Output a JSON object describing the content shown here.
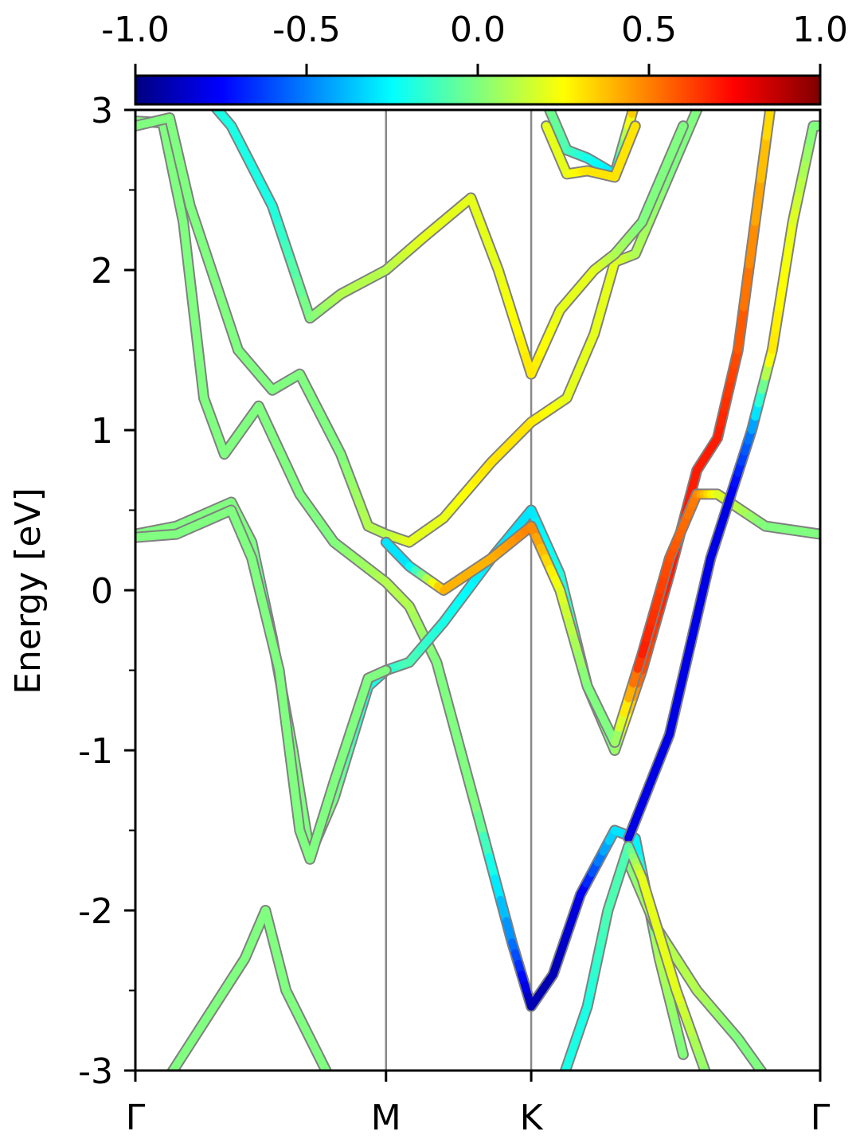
{
  "chart_data": {
    "type": "line",
    "ylabel": "Energy [eV]",
    "ylim": [
      -3,
      3
    ],
    "y_ticks": [
      "3",
      "2",
      "1",
      "0",
      "-1",
      "-2",
      "-3"
    ],
    "y_tick_values": [
      3,
      2,
      1,
      0,
      -1,
      -2,
      -3
    ],
    "k_points": [
      {
        "label": "Γ",
        "x": 0.0
      },
      {
        "label": "M",
        "x": 0.366
      },
      {
        "label": "K",
        "x": 0.578
      },
      {
        "label": "Γ",
        "x": 1.0
      }
    ],
    "colorbar": {
      "colormap": "jet",
      "range": [
        -1.0,
        1.0
      ],
      "tick_labels": [
        "-1.0",
        "-0.5",
        "0.0",
        "0.5",
        "1.0"
      ],
      "tick_values": [
        -1.0,
        -0.5,
        0.0,
        0.5,
        1.0
      ]
    },
    "series": [
      {
        "points": [
          [
            0.0,
            2.93
          ],
          [
            0.04,
            2.92
          ],
          [
            0.07,
            2.3
          ],
          [
            0.1,
            1.2
          ],
          [
            0.13,
            0.85
          ],
          [
            0.18,
            1.15
          ],
          [
            0.24,
            0.6
          ],
          [
            0.29,
            0.3
          ],
          [
            0.366,
            0.05
          ],
          [
            0.4,
            -0.1
          ],
          [
            0.44,
            -0.45
          ],
          [
            0.5,
            -1.4
          ],
          [
            0.55,
            -2.2
          ],
          [
            0.578,
            -2.6
          ],
          [
            0.61,
            -2.4
          ],
          [
            0.65,
            -1.9
          ],
          [
            0.7,
            -1.5
          ],
          [
            0.73,
            -1.55
          ],
          [
            0.765,
            -2.3
          ],
          [
            0.8,
            -2.9
          ]
        ],
        "color_values": [
          0,
          0,
          0,
          0,
          0,
          0,
          0,
          0,
          0.1,
          0.1,
          0,
          0,
          -0.5,
          -0.9,
          -0.9,
          -0.8,
          -0.3,
          -0.3,
          0.1,
          0
        ]
      },
      {
        "points": [
          [
            0.0,
            2.9
          ],
          [
            0.05,
            2.95
          ],
          [
            0.08,
            2.4
          ],
          [
            0.15,
            1.5
          ],
          [
            0.2,
            1.25
          ],
          [
            0.24,
            1.35
          ],
          [
            0.3,
            0.85
          ],
          [
            0.34,
            0.4
          ],
          [
            0.366,
            0.35
          ],
          [
            0.4,
            0.3
          ],
          [
            0.45,
            0.45
          ],
          [
            0.52,
            0.8
          ],
          [
            0.578,
            1.05
          ],
          [
            0.63,
            1.2
          ],
          [
            0.67,
            1.6
          ],
          [
            0.7,
            2.05
          ],
          [
            0.73,
            2.1
          ],
          [
            0.78,
            2.6
          ],
          [
            0.83,
            3.1
          ]
        ],
        "color_values": [
          0,
          0,
          0,
          0,
          0,
          0,
          0,
          0.1,
          0.1,
          0.2,
          0.2,
          0.3,
          0.3,
          0.2,
          0.2,
          0.2,
          0.1,
          0,
          0
        ]
      },
      {
        "points": [
          [
            0.1,
            3.1
          ],
          [
            0.14,
            2.9
          ],
          [
            0.2,
            2.4
          ],
          [
            0.255,
            1.7
          ],
          [
            0.3,
            1.85
          ],
          [
            0.366,
            2.0
          ],
          [
            0.42,
            2.2
          ],
          [
            0.49,
            2.45
          ],
          [
            0.53,
            2.0
          ],
          [
            0.578,
            1.35
          ],
          [
            0.62,
            1.75
          ],
          [
            0.67,
            2.0
          ],
          [
            0.7,
            2.1
          ],
          [
            0.74,
            2.3
          ],
          [
            0.8,
            2.9
          ]
        ],
        "color_values": [
          -0.2,
          -0.2,
          -0.2,
          0,
          0.1,
          0.1,
          0.2,
          0.2,
          0.2,
          0.3,
          0.2,
          0.2,
          0.1,
          0,
          0
        ]
      },
      {
        "points": [
          [
            0.0,
            0.35
          ],
          [
            0.06,
            0.4
          ],
          [
            0.14,
            0.55
          ],
          [
            0.17,
            0.3
          ],
          [
            0.2,
            -0.3
          ],
          [
            0.23,
            -1.0
          ],
          [
            0.255,
            -1.65
          ],
          [
            0.29,
            -1.3
          ],
          [
            0.34,
            -0.6
          ],
          [
            0.366,
            -0.5
          ],
          [
            0.4,
            -0.45
          ],
          [
            0.45,
            -0.2
          ],
          [
            0.52,
            0.2
          ],
          [
            0.578,
            0.5
          ],
          [
            0.62,
            0.1
          ],
          [
            0.66,
            -0.6
          ],
          [
            0.7,
            -1.0
          ],
          [
            0.74,
            -0.5
          ],
          [
            0.78,
            0.1
          ],
          [
            0.82,
            0.75
          ],
          [
            0.85,
            0.95
          ],
          [
            0.88,
            1.5
          ],
          [
            0.93,
            3.1
          ]
        ],
        "color_values": [
          0,
          0,
          0,
          0,
          -0.1,
          0,
          0,
          0,
          -0.2,
          -0.2,
          -0.1,
          -0.2,
          -0.3,
          -0.3,
          -0.2,
          0,
          0,
          0.6,
          0.7,
          0.7,
          0.7,
          0.6,
          0.3
        ]
      },
      {
        "points": [
          [
            0.366,
            0.3
          ],
          [
            0.4,
            0.15
          ],
          [
            0.45,
            0.0
          ],
          [
            0.52,
            0.2
          ],
          [
            0.578,
            0.4
          ],
          [
            0.62,
            0.0
          ],
          [
            0.66,
            -0.6
          ],
          [
            0.7,
            -0.95
          ],
          [
            0.74,
            -0.4
          ],
          [
            0.78,
            0.2
          ],
          [
            0.82,
            0.6
          ],
          [
            0.85,
            0.6
          ],
          [
            0.92,
            0.4
          ],
          [
            1.0,
            0.35
          ]
        ],
        "color_values": [
          -0.3,
          -0.3,
          0.4,
          0.4,
          0.5,
          0.2,
          0,
          0,
          0.7,
          0.6,
          0.5,
          0.2,
          0,
          0
        ]
      },
      {
        "points": [
          [
            0.72,
            -1.55
          ],
          [
            0.78,
            -0.9
          ],
          [
            0.84,
            0.2
          ],
          [
            0.87,
            0.6
          ],
          [
            0.9,
            1.0
          ],
          [
            0.93,
            1.5
          ],
          [
            0.96,
            2.3
          ],
          [
            0.99,
            2.9
          ],
          [
            1.0,
            2.9
          ]
        ],
        "color_values": [
          -0.8,
          -0.8,
          -0.8,
          -0.8,
          -0.5,
          0.3,
          0.2,
          0,
          0
        ]
      },
      {
        "points": [
          [
            0.6,
            3.05
          ],
          [
            0.63,
            2.75
          ],
          [
            0.66,
            2.7
          ],
          [
            0.7,
            2.6
          ],
          [
            0.73,
            3.05
          ]
        ],
        "color_values": [
          0,
          -0.1,
          -0.2,
          -0.3,
          0.4
        ]
      },
      {
        "points": [
          [
            0.6,
            2.9
          ],
          [
            0.63,
            2.6
          ],
          [
            0.66,
            2.62
          ],
          [
            0.7,
            2.58
          ],
          [
            0.73,
            2.9
          ]
        ],
        "color_values": [
          0.2,
          0.2,
          0.3,
          0.3,
          0.3
        ]
      },
      {
        "points": [
          [
            0.0,
            0.33
          ],
          [
            0.06,
            0.35
          ],
          [
            0.14,
            0.5
          ],
          [
            0.17,
            0.2
          ],
          [
            0.21,
            -0.5
          ],
          [
            0.24,
            -1.5
          ],
          [
            0.255,
            -1.68
          ],
          [
            0.29,
            -1.2
          ],
          [
            0.34,
            -0.55
          ],
          [
            0.366,
            -0.5
          ]
        ],
        "color_values": [
          0,
          0,
          0,
          0,
          0,
          0,
          0,
          0,
          0,
          0
        ]
      },
      {
        "points": [
          [
            0.04,
            -3.1
          ],
          [
            0.1,
            -2.7
          ],
          [
            0.16,
            -2.3
          ],
          [
            0.19,
            -2.0
          ],
          [
            0.22,
            -2.5
          ],
          [
            0.29,
            -3.1
          ]
        ],
        "color_values": [
          0,
          0,
          0,
          0,
          0,
          0
        ]
      },
      {
        "points": [
          [
            0.72,
            -1.7
          ],
          [
            0.76,
            -2.1
          ],
          [
            0.82,
            -2.5
          ],
          [
            0.88,
            -2.8
          ],
          [
            0.93,
            -3.1
          ]
        ],
        "color_values": [
          0,
          0.1,
          0.1,
          0,
          0
        ]
      },
      {
        "points": [
          [
            0.62,
            -3.1
          ],
          [
            0.66,
            -2.6
          ],
          [
            0.69,
            -2.0
          ],
          [
            0.72,
            -1.6
          ],
          [
            0.74,
            -1.8
          ],
          [
            0.79,
            -2.5
          ],
          [
            0.84,
            -3.1
          ]
        ],
        "color_values": [
          -0.2,
          -0.2,
          -0.1,
          -0.1,
          0.2,
          0.2,
          0
        ]
      }
    ]
  }
}
